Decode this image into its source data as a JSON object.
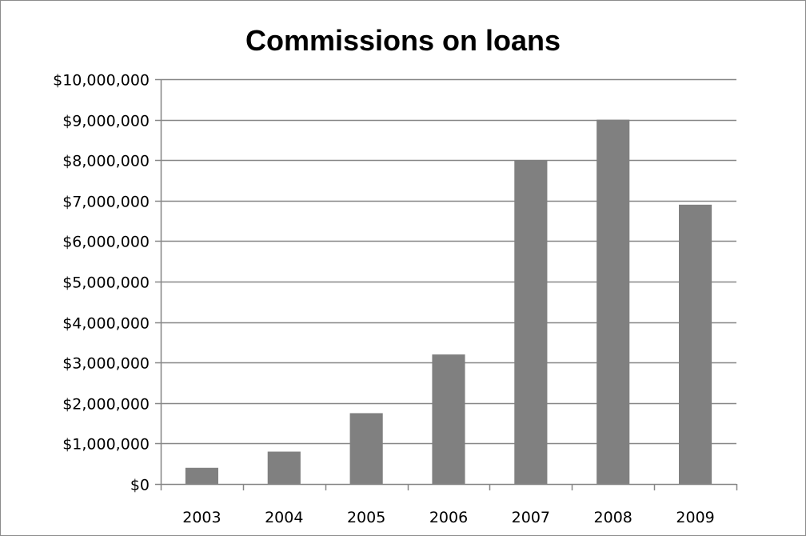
{
  "chart_data": {
    "type": "bar",
    "title": "Commissions on loans",
    "categories": [
      "2003",
      "2004",
      "2005",
      "2006",
      "2007",
      "2008",
      "2009"
    ],
    "values": [
      400000,
      800000,
      1750000,
      3200000,
      8000000,
      9000000,
      6900000
    ],
    "xlabel": "",
    "ylabel": "",
    "ylim": [
      0,
      10000000
    ],
    "yticks": [
      0,
      1000000,
      2000000,
      3000000,
      4000000,
      5000000,
      6000000,
      7000000,
      8000000,
      9000000,
      10000000
    ],
    "ytick_labels": [
      "$0",
      "$1,000,000",
      "$2,000,000",
      "$3,000,000",
      "$4,000,000",
      "$5,000,000",
      "$6,000,000",
      "$7,000,000",
      "$8,000,000",
      "$9,000,000",
      "$10,000,000"
    ],
    "grid": true,
    "legend": "none",
    "colors": {
      "bar": "#808080",
      "grid": "#868686",
      "axis": "#868686",
      "frame": "#8c8c8c",
      "text": "#000000"
    }
  }
}
